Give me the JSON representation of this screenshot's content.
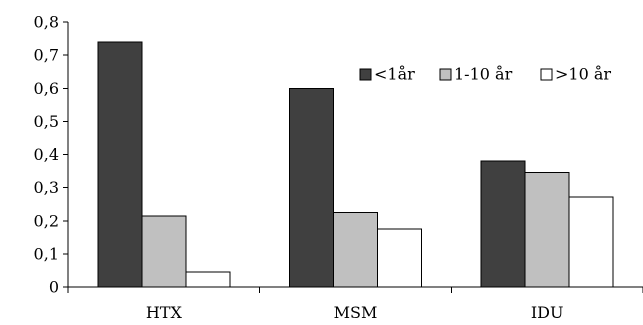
{
  "chart_data": {
    "type": "bar",
    "title": "",
    "xlabel": "",
    "ylabel": "",
    "categories": [
      "HTX",
      "MSM",
      "IDU"
    ],
    "ylim": [
      0,
      0.8
    ],
    "yticks": [
      0,
      0.1,
      0.2,
      0.3,
      0.4,
      0.5,
      0.6,
      0.7,
      0.8
    ],
    "ytick_labels": [
      "0",
      "0,1",
      "0,2",
      "0,3",
      "0,4",
      "0,5",
      "0,6",
      "0,7",
      "0,8"
    ],
    "grid": false,
    "legend_position": "top-right",
    "series": [
      {
        "name": "<1år",
        "color": "#404040",
        "values": [
          0.74,
          0.6,
          0.38
        ]
      },
      {
        "name": "1-10 år",
        "color": "#c0c0c0",
        "values": [
          0.215,
          0.225,
          0.345
        ]
      },
      {
        "name": ">10 år",
        "color": "#ffffff",
        "values": [
          0.045,
          0.175,
          0.272
        ]
      }
    ]
  }
}
